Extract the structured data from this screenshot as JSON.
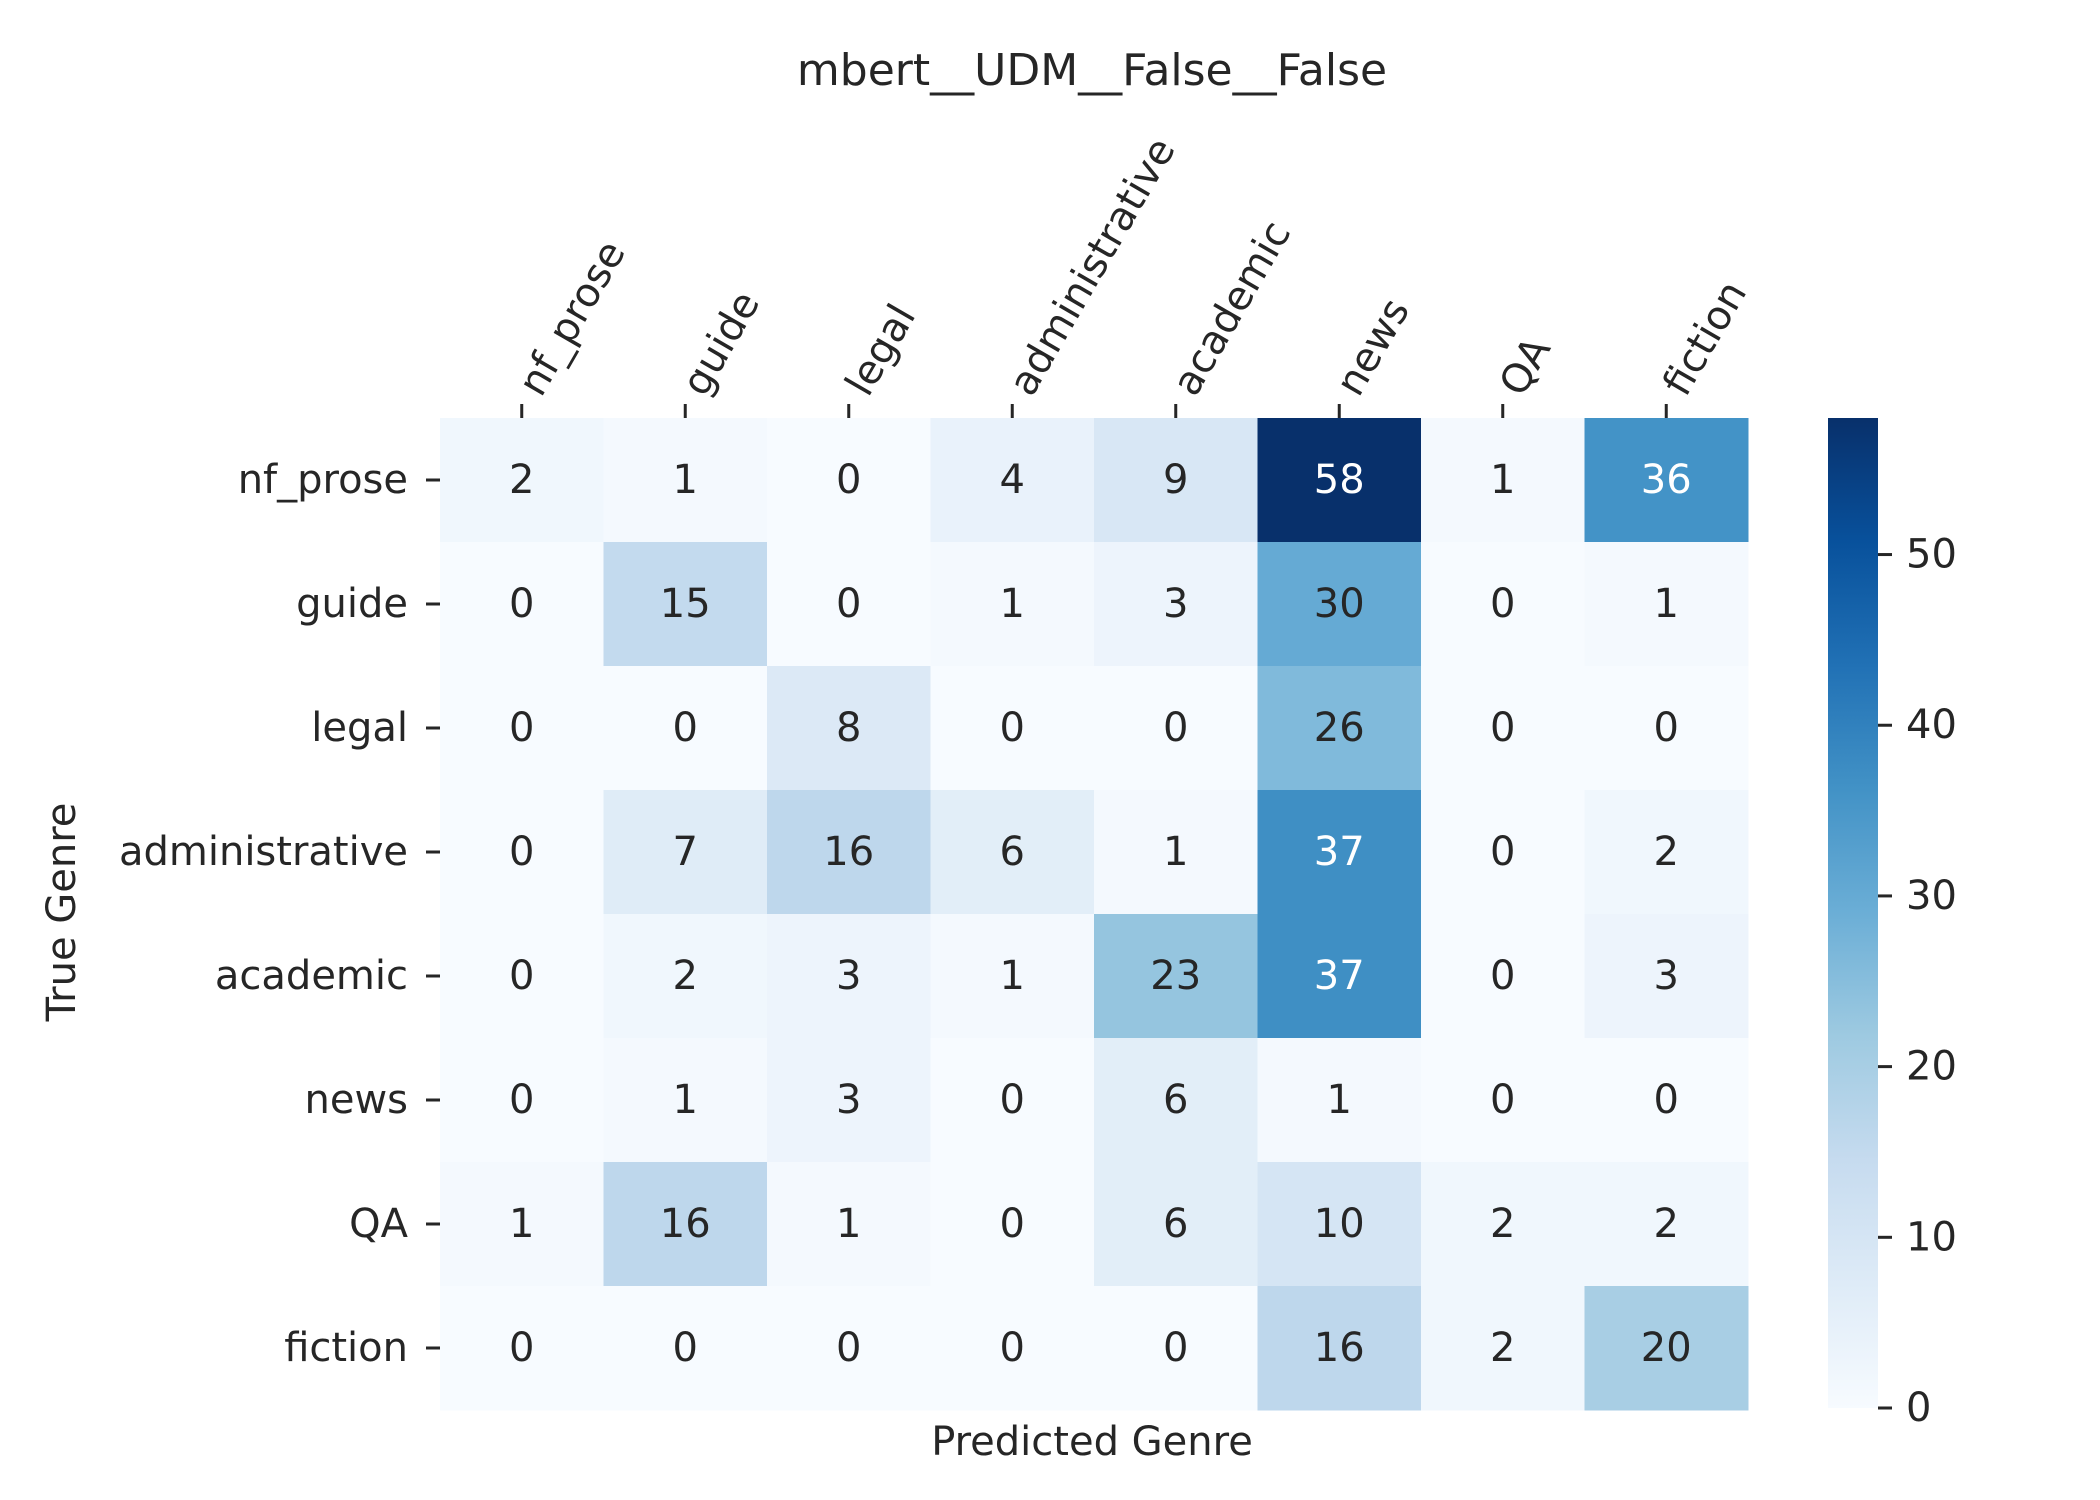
{
  "chart_data": {
    "type": "heatmap",
    "title": "mbert__UDM__False__False",
    "xlabel": "Predicted Genre",
    "ylabel": "True Genre",
    "x_categories": [
      "nf_prose",
      "guide",
      "legal",
      "administrative",
      "academic",
      "news",
      "QA",
      "fiction"
    ],
    "y_categories": [
      "nf_prose",
      "guide",
      "legal",
      "administrative",
      "academic",
      "news",
      "QA",
      "fiction"
    ],
    "x_ticks_position": "top",
    "values": [
      [
        2,
        1,
        0,
        4,
        9,
        58,
        1,
        36
      ],
      [
        0,
        15,
        0,
        1,
        3,
        30,
        0,
        1
      ],
      [
        0,
        0,
        8,
        0,
        0,
        26,
        0,
        0
      ],
      [
        0,
        7,
        16,
        6,
        1,
        37,
        0,
        2
      ],
      [
        0,
        2,
        3,
        1,
        23,
        37,
        0,
        3
      ],
      [
        0,
        1,
        3,
        0,
        6,
        1,
        0,
        0
      ],
      [
        1,
        16,
        1,
        0,
        6,
        10,
        2,
        2
      ],
      [
        0,
        0,
        0,
        0,
        0,
        16,
        2,
        20
      ]
    ],
    "colormap": "Blues",
    "colorbar": {
      "min": 0,
      "max": 58,
      "ticks": [
        0,
        10,
        20,
        30,
        40,
        50
      ]
    },
    "grid": false
  }
}
